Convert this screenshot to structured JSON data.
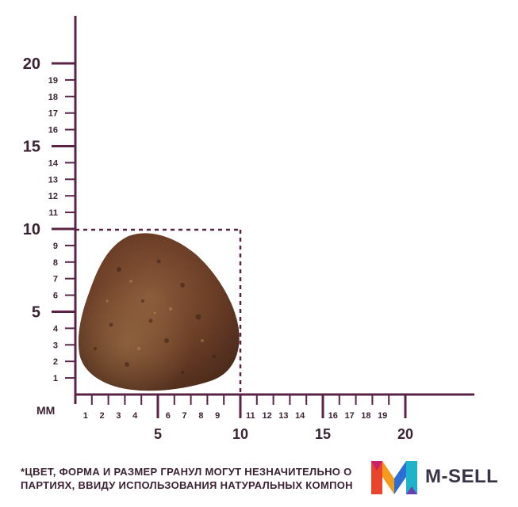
{
  "figure": {
    "unit_label": "MM",
    "y_axis": {
      "major_labels": [
        "5",
        "10",
        "15",
        "20"
      ],
      "minor_labels": [
        "1",
        "2",
        "3",
        "4",
        "6",
        "7",
        "8",
        "9",
        "11",
        "12",
        "13",
        "14",
        "16",
        "17",
        "18",
        "19"
      ]
    },
    "x_axis": {
      "major_labels": [
        "5",
        "10",
        "15",
        "20"
      ],
      "minor_labels": [
        "1",
        "2",
        "3",
        "4",
        "6",
        "7",
        "8",
        "9",
        "11",
        "12",
        "13",
        "14",
        "16",
        "17",
        "18",
        "19"
      ]
    },
    "granule_size_mm": {
      "width": 10,
      "height": 10
    },
    "colors": {
      "axis": "#5a2346",
      "granule": "#7a4a2c",
      "text": "#3a2233"
    }
  },
  "disclaimer": {
    "line1": "*ЦВЕТ, ФОРМА И РАЗМЕР ГРАНУЛ МОГУТ НЕЗНАЧИТЕЛЬНО О",
    "line2": "ПАРТИЯХ, ВВИДУ ИСПОЛЬЗОВАНИЯ НАТУРАЛЬНЫХ КОМПОН"
  },
  "brand": {
    "name": "M-SELL",
    "icon": "m-sell-logo-icon"
  }
}
